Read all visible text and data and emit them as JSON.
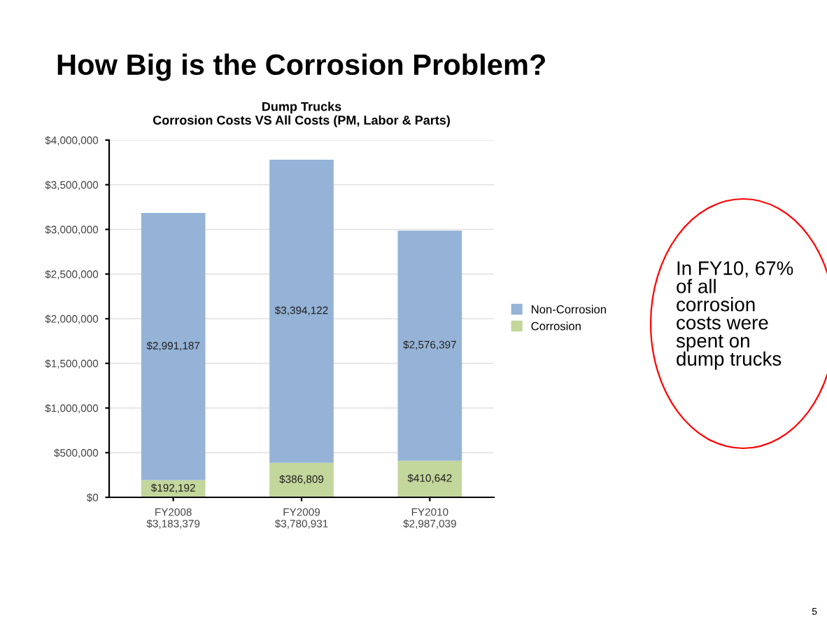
{
  "chart_data": {
    "type": "bar",
    "stacked": true,
    "title": "How Big is the Corrosion Problem?",
    "subtitle": "Dump Trucks\nCorrosion Costs VS All Costs (PM, Labor & Parts)",
    "categories": [
      "FY2008\n$3,183,379",
      "FY2009\n$3,780,931",
      "FY2010\n$2,987,039"
    ],
    "series": [
      {
        "name": "Corrosion",
        "color": "#c3d69b",
        "values": [
          192192,
          386809,
          410642
        ],
        "value_labels": [
          "$192,192",
          "$386,809",
          "$410,642"
        ]
      },
      {
        "name": "Non-Corrosion",
        "color": "#95b3d7",
        "values": [
          2991187,
          3394122,
          2576397
        ],
        "value_labels": [
          "$2,991,187",
          "$3,394,122",
          "$2,576,397"
        ]
      }
    ],
    "ylim": [
      0,
      4000000
    ],
    "yticks": [
      {
        "value": 0,
        "label": "$0"
      },
      {
        "value": 500000,
        "label": "$500,000"
      },
      {
        "value": 1000000,
        "label": "$1,000,000"
      },
      {
        "value": 1500000,
        "label": "$1,500,000"
      },
      {
        "value": 2000000,
        "label": "$2,000,000"
      },
      {
        "value": 2500000,
        "label": "$2,500,000"
      },
      {
        "value": 3000000,
        "label": "$3,000,000"
      },
      {
        "value": 3500000,
        "label": "$3,500,000"
      },
      {
        "value": 4000000,
        "label": "$4,000,000"
      }
    ],
    "grid": "y",
    "legend": "right",
    "annotations": [
      "In FY10, 67%\nof all\ncorrosion\ncosts were\nspent on\ndump trucks",
      "5"
    ]
  }
}
